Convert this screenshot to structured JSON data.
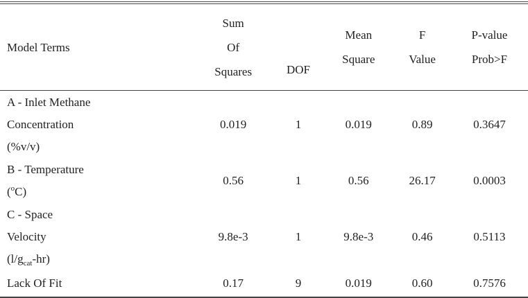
{
  "table": {
    "header": [
      [
        "Model Terms"
      ],
      [
        "Sum",
        "Of",
        "Squares"
      ],
      [
        "DOF"
      ],
      [
        "Mean",
        "Square"
      ],
      [
        "F",
        "Value"
      ],
      [
        "P-value",
        "Prob>F"
      ]
    ],
    "rows": [
      {
        "label": [
          [
            "A - Inlet Methane"
          ],
          [
            "Concentration"
          ],
          [
            " (%v/v)"
          ]
        ],
        "cells": [
          "0.019",
          "1",
          "0.019",
          "0.89",
          "0.3647"
        ]
      },
      {
        "label": [
          [
            "B - Temperature"
          ],
          [
            "(",
            {
              "text": "o",
              "style": "sup"
            },
            "C)"
          ]
        ],
        "cells": [
          "0.56",
          "1",
          "0.56",
          "26.17",
          "0.0003"
        ]
      },
      {
        "label": [
          [
            "C - Space"
          ],
          [
            "Velocity"
          ],
          [
            "(l/g",
            {
              "text": "cat",
              "style": "sub"
            },
            "-hr)"
          ]
        ],
        "cells": [
          "9.8e-3",
          "1",
          "9.8e-3",
          "0.46",
          "0.5113"
        ]
      },
      {
        "label": [
          [
            "Lack Of Fit"
          ]
        ],
        "cells": [
          "0.17",
          "9",
          "0.019",
          "0.60",
          "0.7576"
        ]
      }
    ]
  }
}
